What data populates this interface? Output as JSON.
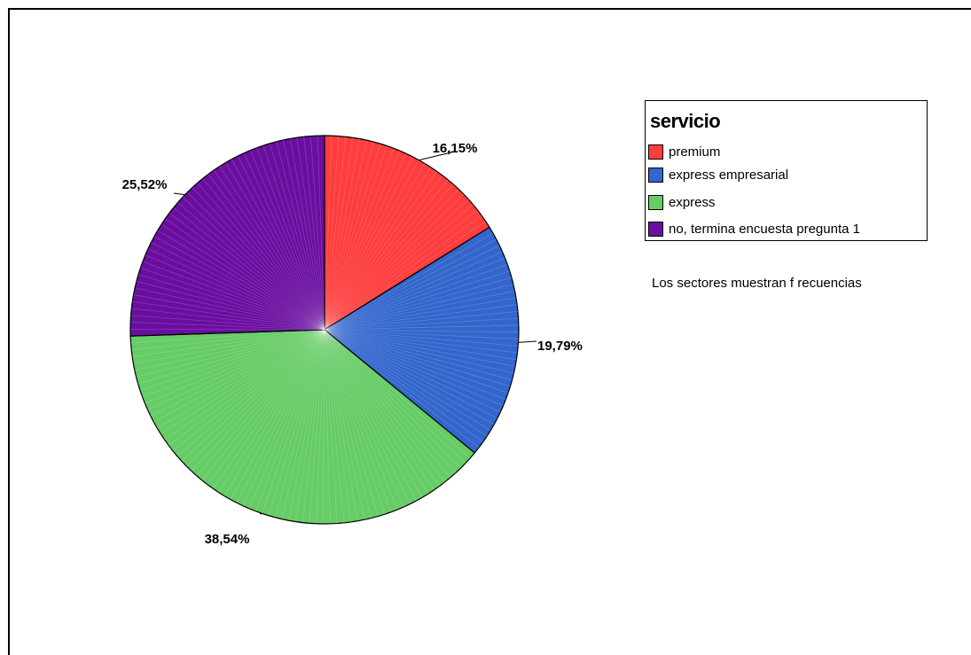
{
  "chart_data": {
    "type": "pie",
    "categories": [
      "premium",
      "express empresarial",
      "express",
      "no, termina encuesta pregunta 1"
    ],
    "values": [
      16.15,
      19.79,
      38.54,
      25.52
    ],
    "value_labels": [
      "16,15%",
      "19,79%",
      "38,54%",
      "25,52%"
    ],
    "colors": [
      "#ff3d3d",
      "#3366cc",
      "#66cc66",
      "#6a0ea0"
    ],
    "legend_title": "servicio",
    "legend_position": "top-right",
    "note": "Los sectores muestran f recuencias"
  }
}
